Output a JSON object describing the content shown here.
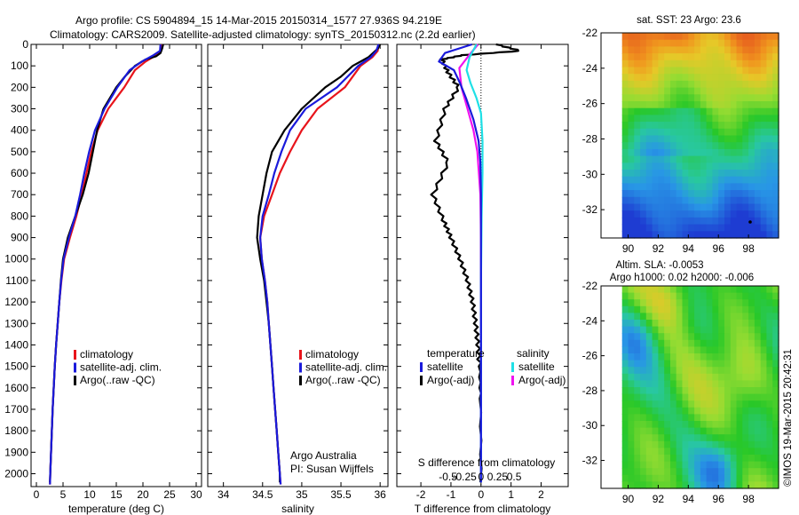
{
  "header": {
    "title_line1": "Argo profile: CS 5904894_15 14-Mar-2015 20150314_1577 27.936S 94.219E",
    "title_line2": "Climatology: CARS2009. Satellite-adjusted climatology: synTS_20150312.nc (2.2d earlier)"
  },
  "credit": {
    "org": "Argo Australia",
    "pi": "PI: Susan Wijffels",
    "stamp": "©IMOS 19-Mar-2015 20:42:31"
  },
  "colors": {
    "climatology": "#e8141b",
    "satellite": "#1a1adb",
    "argo": "#000000",
    "salinity_satellite": "#1fe0e6",
    "salinity_argo": "#f012f0"
  },
  "chart_data": [
    {
      "type": "line",
      "id": "temperature",
      "xlabel": "temperature (deg C)",
      "xlim": [
        -1,
        31
      ],
      "xticks": [
        0,
        5,
        10,
        15,
        20,
        25,
        30
      ],
      "ylim": [
        2060,
        0
      ],
      "yticks": [
        0,
        100,
        200,
        300,
        400,
        500,
        600,
        700,
        800,
        900,
        1000,
        1100,
        1200,
        1300,
        1400,
        1500,
        1600,
        1700,
        1800,
        1900,
        2000
      ],
      "legend": [
        "climatology",
        "satellite-adj. clim.",
        "Argo(..raw -QC)"
      ],
      "series": [
        {
          "name": "climatology",
          "color": "#e8141b",
          "points": [
            [
              23.6,
              0
            ],
            [
              23.4,
              30
            ],
            [
              22.5,
              50
            ],
            [
              20.5,
              80
            ],
            [
              18.5,
              120
            ],
            [
              16.5,
              200
            ],
            [
              13.5,
              300
            ],
            [
              11.5,
              400
            ],
            [
              10.3,
              500
            ],
            [
              9.4,
              600
            ],
            [
              8.5,
              700
            ],
            [
              7.5,
              800
            ],
            [
              6.3,
              900
            ],
            [
              5.2,
              1000
            ],
            [
              4.7,
              1100
            ],
            [
              4.3,
              1200
            ],
            [
              4.0,
              1300
            ],
            [
              3.7,
              1400
            ],
            [
              3.45,
              1500
            ],
            [
              3.25,
              1600
            ],
            [
              3.05,
              1700
            ],
            [
              2.9,
              1800
            ],
            [
              2.75,
              1900
            ],
            [
              2.6,
              2000
            ],
            [
              2.55,
              2050
            ]
          ]
        },
        {
          "name": "satellite-adj. clim.",
          "color": "#1a1adb",
          "points": [
            [
              23.3,
              0
            ],
            [
              23.2,
              30
            ],
            [
              22.0,
              50
            ],
            [
              19.8,
              80
            ],
            [
              17.5,
              120
            ],
            [
              15.2,
              200
            ],
            [
              12.8,
              300
            ],
            [
              11.0,
              400
            ],
            [
              9.9,
              500
            ],
            [
              9.0,
              600
            ],
            [
              8.2,
              700
            ],
            [
              7.3,
              800
            ],
            [
              6.1,
              900
            ],
            [
              5.1,
              1000
            ],
            [
              4.65,
              1100
            ],
            [
              4.3,
              1200
            ],
            [
              4.0,
              1300
            ],
            [
              3.7,
              1400
            ],
            [
              3.45,
              1500
            ],
            [
              3.25,
              1600
            ],
            [
              3.05,
              1700
            ],
            [
              2.9,
              1800
            ],
            [
              2.75,
              1900
            ],
            [
              2.6,
              2000
            ],
            [
              2.55,
              2050
            ]
          ]
        },
        {
          "name": "Argo(..raw -QC)",
          "color": "#000000",
          "points": [
            [
              23.8,
              0
            ],
            [
              23.6,
              20
            ],
            [
              23.3,
              40
            ],
            [
              22.5,
              55
            ],
            [
              20.5,
              70
            ],
            [
              18.5,
              100
            ],
            [
              16.6,
              150
            ],
            [
              15.0,
              200
            ],
            [
              12.6,
              300
            ],
            [
              11.4,
              400
            ],
            [
              10.6,
              500
            ],
            [
              9.8,
              600
            ],
            [
              8.7,
              700
            ],
            [
              7.3,
              800
            ],
            [
              5.9,
              900
            ],
            [
              5.0,
              1000
            ],
            [
              4.6,
              1100
            ],
            [
              4.3,
              1200
            ],
            [
              4.0,
              1300
            ],
            [
              3.7,
              1400
            ],
            [
              3.45,
              1500
            ],
            [
              3.25,
              1600
            ],
            [
              3.05,
              1700
            ],
            [
              2.9,
              1800
            ],
            [
              2.75,
              1900
            ],
            [
              2.6,
              2000
            ],
            [
              2.55,
              2040
            ]
          ]
        }
      ]
    },
    {
      "type": "line",
      "id": "salinity",
      "xlabel": "salinity",
      "xlim": [
        33.8,
        36.1
      ],
      "xticks": [
        34,
        34.5,
        35,
        35.5,
        36
      ],
      "ylim": [
        2060,
        0
      ],
      "legend": [
        "climatology",
        "satellite-adj. clim.",
        "Argo(..raw -QC)"
      ],
      "series": [
        {
          "name": "climatology",
          "color": "#e8141b",
          "points": [
            [
              35.98,
              0
            ],
            [
              35.97,
              30
            ],
            [
              35.9,
              60
            ],
            [
              35.75,
              100
            ],
            [
              35.55,
              200
            ],
            [
              35.2,
              300
            ],
            [
              35.0,
              400
            ],
            [
              34.85,
              500
            ],
            [
              34.72,
              600
            ],
            [
              34.62,
              700
            ],
            [
              34.52,
              800
            ],
            [
              34.47,
              900
            ],
            [
              34.49,
              1000
            ],
            [
              34.53,
              1100
            ],
            [
              34.56,
              1200
            ],
            [
              34.58,
              1300
            ],
            [
              34.6,
              1400
            ],
            [
              34.62,
              1500
            ],
            [
              34.64,
              1600
            ],
            [
              34.66,
              1700
            ],
            [
              34.68,
              1800
            ],
            [
              34.7,
              1900
            ],
            [
              34.72,
              2000
            ],
            [
              34.73,
              2050
            ]
          ]
        },
        {
          "name": "satellite-adj. clim.",
          "color": "#1a1adb",
          "points": [
            [
              35.98,
              0
            ],
            [
              35.95,
              30
            ],
            [
              35.88,
              60
            ],
            [
              35.72,
              100
            ],
            [
              35.45,
              200
            ],
            [
              35.05,
              300
            ],
            [
              34.85,
              400
            ],
            [
              34.74,
              500
            ],
            [
              34.65,
              600
            ],
            [
              34.58,
              700
            ],
            [
              34.5,
              800
            ],
            [
              34.47,
              900
            ],
            [
              34.49,
              1000
            ],
            [
              34.53,
              1100
            ],
            [
              34.56,
              1200
            ],
            [
              34.58,
              1300
            ],
            [
              34.6,
              1400
            ],
            [
              34.62,
              1500
            ],
            [
              34.64,
              1600
            ],
            [
              34.66,
              1700
            ],
            [
              34.68,
              1800
            ],
            [
              34.7,
              1900
            ],
            [
              34.72,
              2000
            ],
            [
              34.73,
              2050
            ]
          ]
        },
        {
          "name": "Argo(..raw -QC)",
          "color": "#000000",
          "points": [
            [
              36.0,
              0
            ],
            [
              35.97,
              20
            ],
            [
              35.85,
              60
            ],
            [
              35.65,
              100
            ],
            [
              35.5,
              150
            ],
            [
              35.3,
              200
            ],
            [
              35.0,
              300
            ],
            [
              34.78,
              400
            ],
            [
              34.62,
              500
            ],
            [
              34.55,
              600
            ],
            [
              34.5,
              700
            ],
            [
              34.45,
              800
            ],
            [
              34.43,
              900
            ],
            [
              34.47,
              1000
            ],
            [
              34.52,
              1100
            ],
            [
              34.55,
              1200
            ],
            [
              34.58,
              1300
            ],
            [
              34.6,
              1400
            ],
            [
              34.62,
              1500
            ],
            [
              34.64,
              1600
            ],
            [
              34.66,
              1700
            ],
            [
              34.68,
              1800
            ],
            [
              34.7,
              1900
            ],
            [
              34.72,
              2000
            ],
            [
              34.72,
              2040
            ]
          ]
        }
      ]
    },
    {
      "type": "line",
      "id": "difference",
      "xlabel": "T difference from climatology",
      "xlabel_top": "S difference from climatology",
      "xlim": [
        -2.8,
        2.9
      ],
      "xticks": [
        -2,
        -1,
        0,
        1,
        2
      ],
      "s_ticks": [
        "-0.5",
        "-0.25",
        "0",
        "0.25",
        "0.5"
      ],
      "legend": {
        "temperature_heading": "temperature",
        "salinity_heading": "salinity",
        "items": [
          "satellite",
          "Argo(-adj)",
          "satellite",
          "Argo(-adj)"
        ]
      },
      "series": [
        {
          "name": "satellite",
          "color": "#1a1adb",
          "points": [
            [
              -0.3,
              0
            ],
            [
              -1.2,
              40
            ],
            [
              -1.4,
              80
            ],
            [
              -0.9,
              120
            ],
            [
              -0.7,
              180
            ],
            [
              -0.5,
              250
            ],
            [
              -0.25,
              350
            ],
            [
              -0.08,
              450
            ],
            [
              -0.02,
              550
            ],
            [
              0,
              700
            ],
            [
              0,
              2040
            ]
          ]
        },
        {
          "name": "Argo(-adj)",
          "color": "#000000",
          "points": [
            [
              0.5,
              0
            ],
            [
              1.3,
              30
            ],
            [
              -0.6,
              50
            ],
            [
              -1.3,
              70
            ],
            [
              -1.1,
              130
            ],
            [
              -0.75,
              200
            ],
            [
              -1.2,
              300
            ],
            [
              -1.5,
              450
            ],
            [
              -1.1,
              550
            ],
            [
              -1.6,
              700
            ],
            [
              -1.25,
              820
            ],
            [
              -1.0,
              900
            ],
            [
              -0.7,
              1000
            ],
            [
              -0.45,
              1100
            ],
            [
              -0.28,
              1200
            ],
            [
              -0.18,
              1300
            ],
            [
              -0.1,
              1400
            ],
            [
              -0.05,
              1500
            ],
            [
              -0.02,
              1650
            ],
            [
              0,
              2040
            ]
          ]
        },
        {
          "name": "salinity satellite",
          "color": "#1fe0e6",
          "points": [
            [
              -0.15,
              0
            ],
            [
              -0.38,
              60
            ],
            [
              -0.48,
              120
            ],
            [
              -0.35,
              180
            ],
            [
              -0.15,
              250
            ],
            [
              0.0,
              320
            ],
            [
              0.05,
              450
            ],
            [
              0.05,
              600
            ],
            [
              0.02,
              800
            ],
            [
              0,
              1100
            ],
            [
              0,
              2040
            ]
          ]
        },
        {
          "name": "salinity Argo(-adj)",
          "color": "#f012f0",
          "points": [
            [
              -0.1,
              0
            ],
            [
              -0.45,
              60
            ],
            [
              -0.72,
              110
            ],
            [
              -0.65,
              200
            ],
            [
              -0.45,
              300
            ],
            [
              -0.25,
              400
            ],
            [
              -0.12,
              500
            ],
            [
              -0.02,
              700
            ],
            [
              0.0,
              900
            ],
            [
              0,
              1100
            ],
            [
              0,
              2040
            ]
          ]
        }
      ]
    },
    {
      "type": "heatmap",
      "id": "sst_map",
      "title": "sat. SST: 23  Argo: 23.6",
      "xticks": [
        "90",
        "92",
        "94",
        "96",
        "98"
      ],
      "yticks": [
        "-22",
        "-24",
        "-26",
        "-28",
        "-30",
        "-32"
      ],
      "xlim": [
        88.2,
        100
      ],
      "ylim": [
        -33.6,
        -22
      ]
    },
    {
      "type": "heatmap",
      "id": "sla_map",
      "title": "Altim. SLA: -0.0053",
      "subtitle": "Argo h1000: 0.02  h2000: -0.006",
      "xticks": [
        "90",
        "92",
        "94",
        "96",
        "98"
      ],
      "yticks": [
        "-22",
        "-24",
        "-26",
        "-28",
        "-30",
        "-32"
      ],
      "xlim": [
        88.2,
        100
      ],
      "ylim": [
        -33.6,
        -22
      ]
    }
  ]
}
